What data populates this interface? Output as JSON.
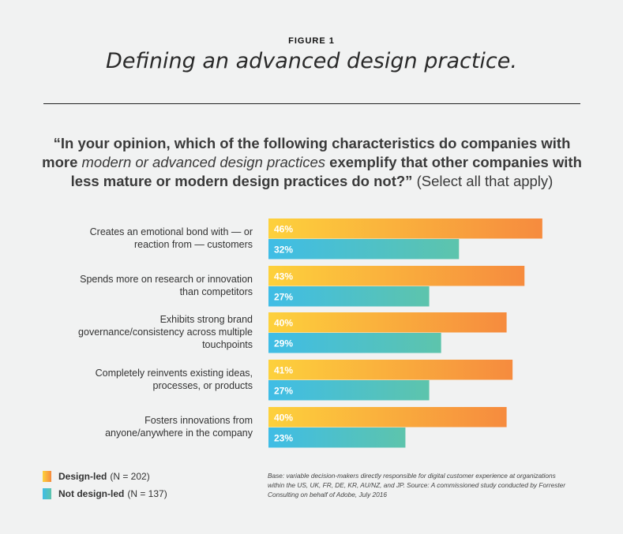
{
  "header": {
    "figure_label": "FIGURE 1",
    "title": "Defining an advanced design practice."
  },
  "question": {
    "part1": "“In your opinion, which of the following characteristics do companies with more",
    "part2_italic": "modern or advanced design practices",
    "part3": "exemplify that other companies with less mature or modern design practices do not?”",
    "part4": "(Select all that apply)"
  },
  "colors": {
    "design_led_start": "#fdd13c",
    "design_led_end": "#f68b3e",
    "not_design_led_start": "#3fbde6",
    "not_design_led_end": "#5dc4ac",
    "background": "#f1f2f2"
  },
  "chart_data": {
    "type": "bar",
    "orientation": "horizontal",
    "title": "Defining an advanced design practice.",
    "categories": [
      [
        "Creates an emotional bond with — or",
        "reaction from — customers"
      ],
      [
        "Spends more on research or innovation",
        "than competitors"
      ],
      [
        "Exhibits strong brand",
        "governance/consistency across multiple",
        "touchpoints"
      ],
      [
        "Completely reinvents existing ideas,",
        "processes, or products"
      ],
      [
        "Fosters innovations from",
        "anyone/anywhere in the company"
      ]
    ],
    "series": [
      {
        "name": "Design-led",
        "n_label": "(N = 202)",
        "values": [
          46,
          43,
          40,
          41,
          40
        ],
        "labels": [
          "46%",
          "43%",
          "40%",
          "41%",
          "40%"
        ]
      },
      {
        "name": "Not design-led",
        "n_label": "(N = 137)",
        "values": [
          32,
          27,
          29,
          27,
          23
        ],
        "labels": [
          "32%",
          "27%",
          "29%",
          "27%",
          "23%"
        ]
      }
    ],
    "xlim": [
      0,
      100
    ],
    "unit": "%",
    "grid": false,
    "legend_position": "bottom-left"
  },
  "footnote": {
    "lines": [
      "Base: variable decision-makers directly responsible for digital customer experience at organizations",
      "within the US, UK, FR, DE, KR, AU/NZ, and JP. Source: A commissioned study conducted by Forrester",
      "Consulting on behalf of Adobe, July 2016"
    ]
  }
}
